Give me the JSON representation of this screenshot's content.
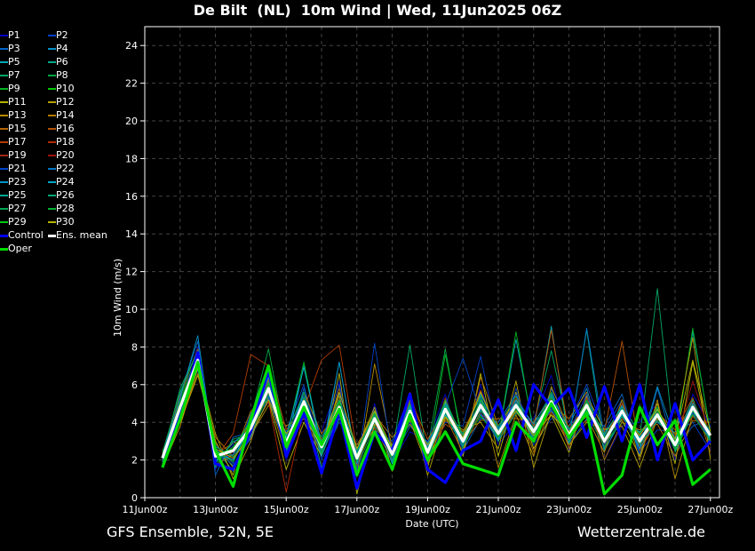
{
  "title": "De Bilt  (NL)  10m Wind | Wed, 11Jun2025 06Z",
  "footer": {
    "left": "GFS Ensemble, 52N, 5E",
    "right": "Wetterzentrale.de"
  },
  "chart_data": {
    "type": "line",
    "title": "De Bilt  (NL)  10m Wind | Wed, 11Jun2025 06Z",
    "xlabel": "Date (UTC)",
    "ylabel": "10m Wind (m/s)",
    "ylim": [
      0,
      25
    ],
    "yticks": [
      "0",
      "2",
      "4",
      "6",
      "8",
      "10",
      "12",
      "14",
      "16",
      "18",
      "20",
      "22",
      "24"
    ],
    "xticks": [
      "11Jun 00z",
      "13Jun 00z",
      "15Jun 00z",
      "17Jun 00z",
      "19Jun 00z",
      "21Jun 00z",
      "23Jun 00z",
      "25Jun 00z",
      "27Jun 00z"
    ],
    "x_start": "11Jun 12z",
    "x_step_hours": 12,
    "grid": true,
    "legend_placement": "left-outside",
    "series": [
      {
        "name": "P1",
        "color": "#0000c8",
        "values": [
          2.0,
          5.2,
          8.0,
          1.5,
          2.8,
          3.0,
          6.5,
          2.0,
          4.5,
          3.5,
          6.2,
          1.2,
          5.0,
          1.8,
          3.5,
          3.0,
          5.5,
          2.2,
          6.0,
          2.8,
          4.0,
          4.2,
          6.5,
          2.5,
          5.5,
          2.0,
          3.8,
          4.0,
          5.0,
          2.0,
          5.5,
          3.8
        ]
      },
      {
        "name": "P2",
        "color": "#0040c8",
        "values": [
          2.3,
          4.6,
          7.0,
          2.8,
          1.8,
          4.5,
          5.0,
          3.5,
          6.0,
          2.0,
          4.0,
          2.8,
          3.6,
          3.0,
          5.5,
          1.8,
          4.0,
          3.8,
          7.5,
          3.0,
          5.8,
          2.8,
          4.2,
          4.0,
          6.0,
          3.5,
          5.2,
          2.4,
          3.6,
          3.5,
          4.0,
          2.5
        ]
      },
      {
        "name": "P3",
        "color": "#0064c8",
        "values": [
          1.8,
          5.5,
          8.3,
          1.2,
          3.2,
          3.5,
          6.8,
          2.5,
          5.8,
          3.0,
          5.5,
          1.5,
          4.8,
          2.0,
          3.8,
          2.8,
          5.2,
          2.5,
          4.2,
          4.0,
          5.5,
          3.0,
          5.8,
          2.8,
          4.2,
          3.8,
          5.5,
          2.2,
          5.8,
          2.5,
          3.8,
          4.2
        ]
      },
      {
        "name": "P4",
        "color": "#0090c8",
        "values": [
          2.4,
          4.2,
          6.8,
          2.5,
          2.0,
          4.0,
          5.5,
          3.2,
          4.8,
          2.2,
          4.5,
          2.5,
          3.8,
          2.8,
          5.0,
          2.0,
          4.4,
          3.2,
          5.5,
          3.6,
          4.5,
          4.0,
          4.8,
          3.8,
          5.8,
          2.5,
          4.2,
          3.5,
          4.0,
          3.2,
          5.2,
          2.8
        ]
      },
      {
        "name": "P5",
        "color": "#00a8b4",
        "values": [
          2.1,
          5.0,
          7.5,
          2.0,
          2.6,
          3.9,
          6.2,
          2.6,
          7.0,
          2.4,
          7.2,
          1.8,
          4.0,
          2.6,
          4.2,
          2.9,
          5.0,
          3.1,
          4.4,
          3.2,
          8.4,
          3.6,
          9.1,
          2.9,
          4.6,
          3.2,
          4.4,
          2.6,
          4.2,
          3.0,
          8.8,
          3.5
        ]
      },
      {
        "name": "P6",
        "color": "#00a888",
        "values": [
          1.9,
          4.4,
          7.1,
          2.6,
          1.4,
          3.4,
          5.6,
          3.4,
          5.4,
          1.6,
          4.2,
          2.4,
          4.6,
          1.9,
          4.8,
          2.2,
          4.9,
          2.8,
          5.2,
          3.8,
          5.0,
          3.2,
          5.4,
          3.1,
          8.9,
          2.6,
          4.9,
          3.4,
          4.7,
          2.6,
          5.0,
          3.0
        ]
      },
      {
        "name": "P7",
        "color": "#00a864",
        "values": [
          2.2,
          5.8,
          7.8,
          1.8,
          3.0,
          3.2,
          6.0,
          2.4,
          5.0,
          3.2,
          5.0,
          1.6,
          3.8,
          2.4,
          8.1,
          2.0,
          4.5,
          3.4,
          5.0,
          3.0,
          4.6,
          3.9,
          7.8,
          3.5,
          5.2,
          2.8,
          4.0,
          3.2,
          11.1,
          2.4,
          4.5,
          3.6
        ]
      },
      {
        "name": "P8",
        "color": "#00a844",
        "values": [
          2.0,
          4.9,
          7.4,
          2.4,
          2.2,
          4.2,
          7.9,
          3.0,
          4.6,
          2.8,
          4.6,
          2.0,
          4.5,
          2.2,
          4.4,
          2.6,
          7.9,
          2.6,
          4.6,
          3.6,
          5.2,
          3.3,
          4.8,
          3.6,
          4.4,
          3.4,
          4.8,
          2.8,
          4.6,
          2.9,
          4.9,
          3.1
        ]
      },
      {
        "name": "P9",
        "color": "#00b420",
        "values": [
          1.7,
          4.6,
          7.2,
          2.2,
          2.4,
          3.6,
          5.4,
          3.1,
          7.2,
          2.5,
          4.9,
          2.2,
          4.0,
          2.5,
          4.7,
          1.9,
          7.6,
          3.0,
          4.3,
          3.2,
          8.8,
          3.4,
          5.6,
          3.0,
          5.0,
          3.1,
          4.3,
          3.0,
          4.8,
          2.7,
          9.0,
          3.4
        ]
      },
      {
        "name": "P10",
        "color": "#00c800",
        "values": [
          2.2,
          5.3,
          7.6,
          2.0,
          2.7,
          3.8,
          6.0,
          2.8,
          5.3,
          2.9,
          5.1,
          1.9,
          4.3,
          2.1,
          4.9,
          2.5,
          4.8,
          3.1,
          5.1,
          3.5,
          4.8,
          3.6,
          5.2,
          3.2,
          4.7,
          2.9,
          4.5,
          3.1,
          4.3,
          2.6,
          4.6,
          3.2
        ]
      },
      {
        "name": "P11",
        "color": "#b4b400",
        "values": [
          2.4,
          4.0,
          6.5,
          3.0,
          1.2,
          4.4,
          5.2,
          1.5,
          4.0,
          2.2,
          6.6,
          0.2,
          3.9,
          2.8,
          4.1,
          1.6,
          5.1,
          2.2,
          6.6,
          2.2,
          5.6,
          2.6,
          4.4,
          2.4,
          5.4,
          3.6,
          4.1,
          2.2,
          5.0,
          1.8,
          7.2,
          2.8
        ]
      },
      {
        "name": "P12",
        "color": "#b4a000",
        "values": [
          1.6,
          3.8,
          6.9,
          3.4,
          1.0,
          3.0,
          5.9,
          2.2,
          5.0,
          1.2,
          4.4,
          2.6,
          4.8,
          1.4,
          5.2,
          1.2,
          4.2,
          3.6,
          4.0,
          2.6,
          6.2,
          1.6,
          4.6,
          2.8,
          4.0,
          3.6,
          3.8,
          1.6,
          4.2,
          3.4,
          8.5,
          2.0
        ]
      },
      {
        "name": "P13",
        "color": "#b48c00",
        "values": [
          2.0,
          4.5,
          7.0,
          2.9,
          1.6,
          3.3,
          4.9,
          3.8,
          4.4,
          2.6,
          5.4,
          1.2,
          7.1,
          2.6,
          3.9,
          2.7,
          4.1,
          3.5,
          5.4,
          1.6,
          4.4,
          2.2,
          5.9,
          3.6,
          4.3,
          2.4,
          5.2,
          2.0,
          5.2,
          1.0,
          4.4,
          3.6
        ]
      },
      {
        "name": "P14",
        "color": "#b47800",
        "values": [
          2.5,
          4.1,
          6.6,
          3.2,
          2.2,
          4.6,
          5.3,
          2.2,
          5.6,
          3.4,
          4.6,
          2.8,
          4.4,
          3.2,
          4.3,
          1.8,
          4.3,
          2.4,
          6.4,
          3.8,
          5.2,
          2.4,
          4.9,
          4.2,
          5.6,
          2.0,
          4.0,
          3.6,
          3.9,
          2.2,
          4.1,
          4.0
        ]
      },
      {
        "name": "P15",
        "color": "#b46400",
        "values": [
          1.9,
          5.0,
          7.2,
          2.3,
          2.9,
          3.1,
          6.3,
          3.3,
          4.2,
          2.4,
          5.8,
          2.3,
          3.7,
          2.0,
          5.3,
          3.1,
          4.6,
          2.9,
          4.1,
          4.2,
          4.2,
          4.0,
          5.3,
          2.6,
          5.1,
          3.3,
          4.7,
          2.8,
          4.5,
          3.6,
          5.3,
          2.4
        ]
      },
      {
        "name": "P16",
        "color": "#b45000",
        "values": [
          2.3,
          5.4,
          7.9,
          1.7,
          2.3,
          4.1,
          5.7,
          2.7,
          4.9,
          3.1,
          4.3,
          1.7,
          4.1,
          2.4,
          4.5,
          2.3,
          3.9,
          3.3,
          5.7,
          3.3,
          4.7,
          3.7,
          8.9,
          3.4,
          4.1,
          3.5,
          8.3,
          2.5,
          4.1,
          3.0,
          4.7,
          3.0
        ]
      },
      {
        "name": "P17",
        "color": "#b43c00",
        "values": [
          2.1,
          4.7,
          7.3,
          2.1,
          3.4,
          7.6,
          7.0,
          3.6,
          4.7,
          7.3,
          8.1,
          2.5,
          4.6,
          2.2,
          4.4,
          2.6,
          4.6,
          3.0,
          4.8,
          3.1,
          4.6,
          3.2,
          4.7,
          3.0,
          5.3,
          3.1,
          4.2,
          3.3,
          4.6,
          3.1,
          4.3,
          3.4
        ]
      },
      {
        "name": "P18",
        "color": "#b42800",
        "values": [
          1.8,
          4.3,
          7.1,
          2.5,
          2.1,
          3.5,
          5.1,
          0.3,
          4.6,
          2.8,
          5.0,
          2.0,
          4.0,
          2.0,
          4.7,
          2.2,
          5.3,
          2.7,
          4.5,
          3.4,
          5.3,
          3.8,
          4.5,
          3.8,
          4.8,
          2.7,
          5.0,
          2.7,
          4.3,
          3.3,
          5.1,
          2.9
        ]
      },
      {
        "name": "P19",
        "color": "#a02814",
        "values": [
          2.2,
          5.1,
          7.5,
          2.2,
          2.6,
          3.8,
          5.6,
          2.8,
          5.2,
          2.6,
          4.7,
          2.1,
          4.3,
          2.4,
          5.6,
          2.5,
          4.8,
          3.2,
          5.0,
          3.5,
          5.0,
          3.4,
          5.0,
          3.4,
          5.0,
          3.0,
          4.6,
          3.1,
          4.5,
          2.9,
          4.9,
          3.2
        ]
      },
      {
        "name": "P20",
        "color": "#a01010",
        "values": [
          2.0,
          4.8,
          7.2,
          2.3,
          2.4,
          3.6,
          5.9,
          3.0,
          5.0,
          2.7,
          4.9,
          2.2,
          4.1,
          2.3,
          4.5,
          2.4,
          4.6,
          3.0,
          4.9,
          3.4,
          4.9,
          3.5,
          5.2,
          3.3,
          4.9,
          3.0,
          4.7,
          3.0,
          4.4,
          2.8,
          6.2,
          3.3
        ]
      },
      {
        "name": "P21",
        "color": "#0044c8",
        "values": [
          2.1,
          4.9,
          7.0,
          2.0,
          2.3,
          4.3,
          5.4,
          3.1,
          5.4,
          2.9,
          6.0,
          1.4,
          8.2,
          2.1,
          4.0,
          2.8,
          4.9,
          7.4,
          4.5,
          3.0,
          5.5,
          3.6,
          4.6,
          3.5,
          5.5,
          2.8,
          4.8,
          3.1,
          4.6,
          2.7,
          4.5,
          3.1
        ]
      },
      {
        "name": "P22",
        "color": "#0074c8",
        "values": [
          1.9,
          4.4,
          7.6,
          2.6,
          1.7,
          3.2,
          5.3,
          2.6,
          4.7,
          2.5,
          4.4,
          2.4,
          4.5,
          2.6,
          4.3,
          2.1,
          4.5,
          2.8,
          5.3,
          3.7,
          5.1,
          3.3,
          4.7,
          3.1,
          9.0,
          3.2,
          4.3,
          2.9,
          4.7,
          2.5,
          4.7,
          3.5
        ]
      },
      {
        "name": "P23",
        "color": "#0094c8",
        "values": [
          2.3,
          5.3,
          8.6,
          1.9,
          2.9,
          3.7,
          6.1,
          2.5,
          5.6,
          2.2,
          7.2,
          1.8,
          4.6,
          2.5,
          4.9,
          2.7,
          5.0,
          3.3,
          4.7,
          3.1,
          5.2,
          3.9,
          5.5,
          3.6,
          4.6,
          3.3,
          4.9,
          2.6,
          5.9,
          3.1,
          5.0,
          3.0
        ]
      },
      {
        "name": "P24",
        "color": "#00a4c8",
        "values": [
          2.0,
          4.6,
          7.3,
          2.4,
          2.0,
          3.9,
          6.4,
          3.2,
          6.9,
          2.8,
          4.6,
          2.0,
          4.2,
          1.8,
          4.8,
          2.3,
          4.4,
          2.7,
          5.1,
          3.6,
          4.8,
          3.1,
          5.0,
          3.2,
          4.8,
          2.9,
          4.4,
          3.2,
          4.4,
          2.8,
          4.6,
          3.4
        ]
      },
      {
        "name": "P25",
        "color": "#00a894",
        "values": [
          2.2,
          5.0,
          7.4,
          2.1,
          2.5,
          3.5,
          5.8,
          2.9,
          5.1,
          2.6,
          4.8,
          2.2,
          4.3,
          2.3,
          4.6,
          2.4,
          4.7,
          3.0,
          4.9,
          3.4,
          4.9,
          3.5,
          5.1,
          3.3,
          4.9,
          3.0,
          4.6,
          3.0,
          4.4,
          2.8,
          4.8,
          3.3
        ]
      },
      {
        "name": "P26",
        "color": "#00a874",
        "values": [
          1.8,
          4.7,
          7.0,
          2.7,
          2.2,
          4.0,
          6.6,
          2.6,
          4.8,
          3.0,
          5.2,
          2.5,
          4.4,
          2.0,
          4.2,
          2.6,
          4.9,
          3.3,
          5.4,
          3.0,
          4.5,
          3.7,
          5.4,
          3.0,
          5.1,
          3.4,
          4.8,
          2.8,
          4.1,
          3.0,
          5.2,
          3.1
        ]
      },
      {
        "name": "P27",
        "color": "#00a854",
        "values": [
          2.4,
          5.6,
          7.8,
          1.6,
          3.1,
          3.4,
          5.5,
          3.3,
          5.6,
          2.3,
          4.5,
          1.9,
          4.0,
          2.7,
          5.0,
          2.1,
          4.5,
          2.7,
          4.6,
          3.8,
          5.4,
          3.2,
          4.9,
          3.7,
          4.5,
          2.7,
          4.3,
          3.4,
          4.8,
          2.5,
          4.6,
          3.6
        ]
      },
      {
        "name": "P28",
        "color": "#00b430",
        "values": [
          1.7,
          4.2,
          7.1,
          2.5,
          1.9,
          3.8,
          6.1,
          2.7,
          5.3,
          2.4,
          5.0,
          2.3,
          4.5,
          2.5,
          4.4,
          2.5,
          5.2,
          3.1,
          5.2,
          3.2,
          4.7,
          3.4,
          5.3,
          3.2,
          5.2,
          3.2,
          4.5,
          2.9,
          4.6,
          3.0,
          4.4,
          3.0
        ]
      },
      {
        "name": "P29",
        "color": "#00c814",
        "values": [
          2.0,
          5.1,
          7.5,
          2.3,
          2.6,
          4.1,
          5.7,
          3.1,
          4.9,
          2.8,
          4.7,
          2.0,
          4.1,
          2.2,
          4.7,
          2.3,
          4.8,
          2.9,
          4.8,
          3.3,
          5.0,
          3.6,
          5.0,
          3.4,
          4.7,
          3.1,
          4.7,
          3.1,
          4.3,
          2.9,
          4.9,
          3.2
        ]
      },
      {
        "name": "P30",
        "color": "#b4b400",
        "values": [
          2.3,
          4.5,
          6.9,
          2.6,
          2.1,
          3.3,
          5.2,
          3.4,
          4.3,
          2.7,
          5.6,
          2.6,
          4.6,
          2.6,
          4.2,
          2.8,
          4.3,
          3.2,
          5.6,
          3.5,
          4.6,
          3.3,
          4.4,
          3.5,
          5.0,
          2.9,
          4.5,
          3.3,
          4.7,
          3.1,
          7.3,
          3.5
        ]
      },
      {
        "name": "Control",
        "color": "#0000ff",
        "values": [
          2.1,
          4.5,
          7.7,
          1.8,
          1.5,
          3.5,
          6.8,
          2.2,
          4.5,
          1.3,
          4.6,
          0.5,
          3.5,
          2.5,
          5.5,
          1.5,
          0.8,
          2.5,
          3.0,
          5.2,
          2.5,
          6.0,
          4.8,
          5.8,
          3.2,
          5.9,
          3.0,
          6.0,
          2.0,
          5.0,
          2.0,
          3.0
        ]
      },
      {
        "name": "Ens. mean",
        "color": "#ffffff",
        "values": [
          2.1,
          4.8,
          7.3,
          2.2,
          2.5,
          3.7,
          5.8,
          2.9,
          5.1,
          2.7,
          4.8,
          2.1,
          4.2,
          2.3,
          4.6,
          2.4,
          4.7,
          3.0,
          4.9,
          3.4,
          4.9,
          3.5,
          5.1,
          3.3,
          4.9,
          3.0,
          4.6,
          3.0,
          4.4,
          2.8,
          4.8,
          3.3
        ]
      },
      {
        "name": "Oper",
        "color": "#00dd00",
        "values": [
          1.6,
          4.2,
          7.2,
          2.5,
          0.6,
          4.2,
          7.0,
          2.7,
          4.8,
          2.8,
          4.7,
          1.2,
          3.5,
          1.5,
          4.4,
          2.0,
          3.5,
          1.8,
          1.5,
          1.2,
          4.0,
          3.0,
          5.0,
          3.2,
          4.5,
          0.2,
          1.2,
          4.8,
          2.8,
          4.1,
          0.7,
          1.5
        ]
      }
    ]
  }
}
